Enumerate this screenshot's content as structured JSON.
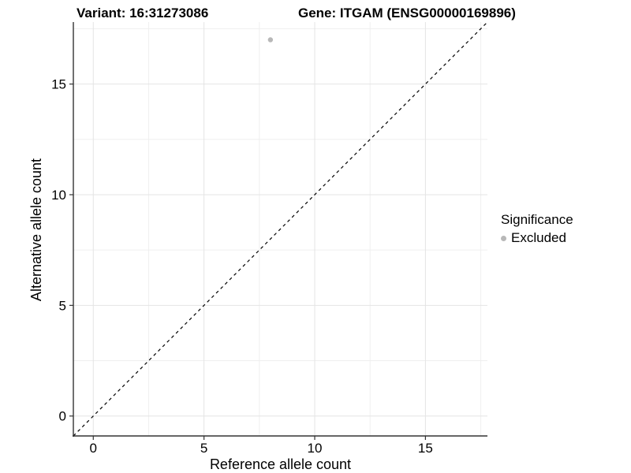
{
  "titles": {
    "variant": "Variant: 16:31273086",
    "gene": "Gene: ITGAM (ENSG00000169896)"
  },
  "chart_data": {
    "type": "scatter",
    "xlabel": "Reference allele count",
    "ylabel": "Alternative allele count",
    "xlim": [
      -0.9,
      17.8
    ],
    "ylim": [
      -0.9,
      17.8
    ],
    "x_ticks": [
      0,
      5,
      10,
      15
    ],
    "y_ticks": [
      0,
      5,
      10,
      15
    ],
    "x_minor_ticks": [
      2.5,
      7.5,
      12.5,
      17.5
    ],
    "y_minor_ticks": [
      2.5,
      7.5,
      12.5,
      17.5
    ],
    "grid": true,
    "series": [
      {
        "name": "Excluded",
        "color": "#b8b8b8",
        "points": [
          {
            "x": 8,
            "y": 17
          }
        ]
      }
    ],
    "reference_line": {
      "type": "identity",
      "slope": 1,
      "intercept": 0,
      "style": "dashed",
      "color": "#000000"
    },
    "legend": {
      "title": "Significance",
      "position": "right",
      "items": [
        {
          "label": "Excluded",
          "color": "#b8b8b8",
          "marker": "circle"
        }
      ]
    }
  },
  "colors": {
    "background": "#ffffff",
    "grid_major": "#e4e4e4",
    "grid_minor": "#efefef",
    "axis_line": "#333333",
    "tick_label": "#000000",
    "point": "#b8b8b8"
  }
}
